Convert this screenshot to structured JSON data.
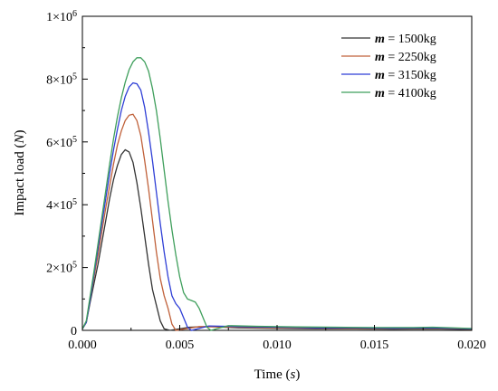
{
  "chart_data": {
    "type": "line",
    "xlabel_parts": [
      "Time (",
      "s",
      ")"
    ],
    "ylabel_parts": [
      "Impact load (",
      "N",
      ")"
    ],
    "xlim": [
      0,
      0.02
    ],
    "ylim": [
      0,
      1000000
    ],
    "x_ticks": [
      "0.000",
      "0.005",
      "0.010",
      "0.015",
      "0.020"
    ],
    "y_ticks": [
      {
        "value": 0,
        "label": "0",
        "exp": ""
      },
      {
        "value": 200000,
        "label": "2×10",
        "exp": "5"
      },
      {
        "value": 400000,
        "label": "4×10",
        "exp": "5"
      },
      {
        "value": 600000,
        "label": "6×10",
        "exp": "5"
      },
      {
        "value": 800000,
        "label": "8×10",
        "exp": "5"
      },
      {
        "value": 1000000,
        "label": "1×10",
        "exp": "6"
      }
    ],
    "grid": false,
    "legend_position": "top-right",
    "series": [
      {
        "name": "m = 1500kg",
        "legend_var": "m",
        "legend_rest": " = 1500kg",
        "color": "#333333",
        "points": [
          [
            0,
            5000
          ],
          [
            0.0002,
            25000
          ],
          [
            0.0004,
            90000
          ],
          [
            0.0006,
            150000
          ],
          [
            0.0008,
            210000
          ],
          [
            0.001,
            280000
          ],
          [
            0.0012,
            350000
          ],
          [
            0.0014,
            420000
          ],
          [
            0.0016,
            480000
          ],
          [
            0.0018,
            525000
          ],
          [
            0.002,
            560000
          ],
          [
            0.0022,
            575000
          ],
          [
            0.0024,
            568000
          ],
          [
            0.0026,
            535000
          ],
          [
            0.0028,
            470000
          ],
          [
            0.003,
            390000
          ],
          [
            0.0032,
            300000
          ],
          [
            0.0034,
            210000
          ],
          [
            0.0036,
            130000
          ],
          [
            0.0038,
            80000
          ],
          [
            0.004,
            30000
          ],
          [
            0.0042,
            5000
          ],
          [
            0.0045,
            0
          ],
          [
            0.0055,
            10000
          ],
          [
            0.0065,
            12000
          ],
          [
            0.008,
            8000
          ],
          [
            0.01,
            6000
          ],
          [
            0.012,
            5000
          ],
          [
            0.014,
            5000
          ],
          [
            0.016,
            4000
          ],
          [
            0.018,
            5000
          ],
          [
            0.02,
            3000
          ]
        ]
      },
      {
        "name": "m = 2250kg",
        "legend_var": "m",
        "legend_rest": " = 2250kg",
        "color": "#c0613a",
        "points": [
          [
            0,
            5000
          ],
          [
            0.0002,
            25000
          ],
          [
            0.0004,
            100000
          ],
          [
            0.0006,
            170000
          ],
          [
            0.0008,
            240000
          ],
          [
            0.001,
            315000
          ],
          [
            0.0012,
            390000
          ],
          [
            0.0014,
            460000
          ],
          [
            0.0016,
            530000
          ],
          [
            0.0018,
            590000
          ],
          [
            0.002,
            635000
          ],
          [
            0.0022,
            668000
          ],
          [
            0.0024,
            685000
          ],
          [
            0.0026,
            688000
          ],
          [
            0.0028,
            668000
          ],
          [
            0.003,
            620000
          ],
          [
            0.0032,
            540000
          ],
          [
            0.0034,
            450000
          ],
          [
            0.0036,
            350000
          ],
          [
            0.0038,
            250000
          ],
          [
            0.004,
            165000
          ],
          [
            0.0042,
            110000
          ],
          [
            0.0044,
            70000
          ],
          [
            0.0046,
            20000
          ],
          [
            0.0048,
            0
          ],
          [
            0.006,
            12000
          ],
          [
            0.008,
            10000
          ],
          [
            0.01,
            8000
          ],
          [
            0.012,
            7000
          ],
          [
            0.014,
            6000
          ],
          [
            0.016,
            6000
          ],
          [
            0.018,
            7000
          ],
          [
            0.02,
            4000
          ]
        ]
      },
      {
        "name": "m = 3150kg",
        "legend_var": "m",
        "legend_rest": " = 3150kg",
        "color": "#2f3fd6",
        "points": [
          [
            0,
            5000
          ],
          [
            0.0002,
            25000
          ],
          [
            0.0004,
            100000
          ],
          [
            0.0006,
            180000
          ],
          [
            0.0008,
            260000
          ],
          [
            0.001,
            340000
          ],
          [
            0.0012,
            420000
          ],
          [
            0.0014,
            500000
          ],
          [
            0.0016,
            575000
          ],
          [
            0.0018,
            640000
          ],
          [
            0.002,
            700000
          ],
          [
            0.0022,
            745000
          ],
          [
            0.0024,
            775000
          ],
          [
            0.0026,
            788000
          ],
          [
            0.0028,
            785000
          ],
          [
            0.003,
            765000
          ],
          [
            0.0032,
            710000
          ],
          [
            0.0034,
            630000
          ],
          [
            0.0036,
            540000
          ],
          [
            0.0038,
            440000
          ],
          [
            0.004,
            340000
          ],
          [
            0.0042,
            250000
          ],
          [
            0.0044,
            170000
          ],
          [
            0.0046,
            110000
          ],
          [
            0.0048,
            85000
          ],
          [
            0.005,
            70000
          ],
          [
            0.0052,
            40000
          ],
          [
            0.0054,
            10000
          ],
          [
            0.0056,
            0
          ],
          [
            0.0065,
            14000
          ],
          [
            0.008,
            12000
          ],
          [
            0.01,
            10000
          ],
          [
            0.012,
            8000
          ],
          [
            0.014,
            8000
          ],
          [
            0.016,
            7000
          ],
          [
            0.018,
            8000
          ],
          [
            0.02,
            5000
          ]
        ]
      },
      {
        "name": "m = 4100kg",
        "legend_var": "m",
        "legend_rest": " = 4100kg",
        "color": "#3f9f5c",
        "points": [
          [
            0,
            5000
          ],
          [
            0.0002,
            30000
          ],
          [
            0.0004,
            110000
          ],
          [
            0.0006,
            190000
          ],
          [
            0.0008,
            275000
          ],
          [
            0.001,
            360000
          ],
          [
            0.0012,
            445000
          ],
          [
            0.0014,
            530000
          ],
          [
            0.0016,
            610000
          ],
          [
            0.0018,
            680000
          ],
          [
            0.002,
            740000
          ],
          [
            0.0022,
            790000
          ],
          [
            0.0024,
            830000
          ],
          [
            0.0026,
            855000
          ],
          [
            0.0028,
            868000
          ],
          [
            0.003,
            868000
          ],
          [
            0.0032,
            855000
          ],
          [
            0.0034,
            825000
          ],
          [
            0.0036,
            770000
          ],
          [
            0.0038,
            700000
          ],
          [
            0.004,
            610000
          ],
          [
            0.0042,
            510000
          ],
          [
            0.0044,
            410000
          ],
          [
            0.0046,
            320000
          ],
          [
            0.0048,
            240000
          ],
          [
            0.005,
            170000
          ],
          [
            0.0052,
            120000
          ],
          [
            0.0054,
            100000
          ],
          [
            0.0056,
            95000
          ],
          [
            0.0058,
            90000
          ],
          [
            0.006,
            70000
          ],
          [
            0.0062,
            40000
          ],
          [
            0.0064,
            10000
          ],
          [
            0.0066,
            0
          ],
          [
            0.0075,
            15000
          ],
          [
            0.009,
            13000
          ],
          [
            0.011,
            11000
          ],
          [
            0.013,
            10000
          ],
          [
            0.015,
            9000
          ],
          [
            0.017,
            9000
          ],
          [
            0.018,
            10000
          ],
          [
            0.02,
            6000
          ]
        ]
      }
    ]
  }
}
